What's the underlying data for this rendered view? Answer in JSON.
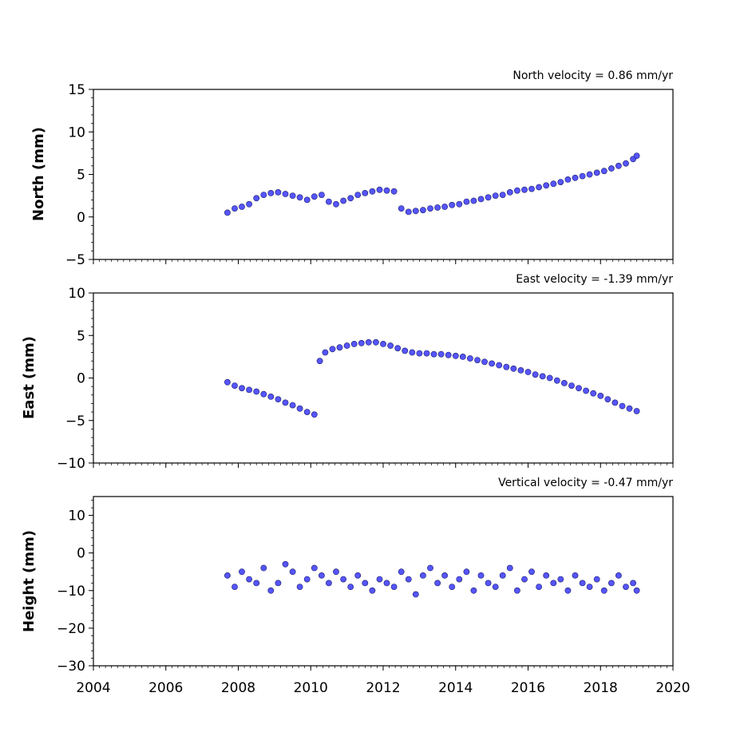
{
  "chart_data": [
    {
      "type": "scatter",
      "title": "North velocity = 0.86 mm/yr",
      "ylabel": "North (mm)",
      "xlim": [
        2004,
        2020
      ],
      "ylim": [
        -5,
        15
      ],
      "yticks": [
        -5,
        0,
        5,
        10,
        15
      ],
      "xticks": [
        2004,
        2006,
        2008,
        2010,
        2012,
        2014,
        2016,
        2018,
        2020
      ],
      "marker_color": "#5555ff",
      "series": [
        {
          "values_description_free": true,
          "x": [
            2007.7,
            2007.9,
            2008.1,
            2008.3,
            2008.5,
            2008.7,
            2008.9,
            2009.1,
            2009.3,
            2009.5,
            2009.7,
            2009.9,
            2010.1,
            2010.3,
            2010.5,
            2010.7,
            2010.9,
            2011.1,
            2011.3,
            2011.5,
            2011.7,
            2011.9,
            2012.1,
            2012.3,
            2012.5,
            2012.7,
            2012.9,
            2013.1,
            2013.3,
            2013.5,
            2013.7,
            2013.9,
            2014.1,
            2014.3,
            2014.5,
            2014.7,
            2014.9,
            2015.1,
            2015.3,
            2015.5,
            2015.7,
            2015.9,
            2016.1,
            2016.3,
            2016.5,
            2016.7,
            2016.9,
            2017.1,
            2017.3,
            2017.5,
            2017.7,
            2017.9,
            2018.1,
            2018.3,
            2018.5,
            2018.7,
            2018.9,
            2019.0
          ],
          "y": [
            0.5,
            1.0,
            1.2,
            1.5,
            2.2,
            2.6,
            2.8,
            2.9,
            2.7,
            2.5,
            2.3,
            2.0,
            2.4,
            2.6,
            1.8,
            1.5,
            1.9,
            2.2,
            2.6,
            2.8,
            3.0,
            3.2,
            3.1,
            3.0,
            1.0,
            0.6,
            0.7,
            0.8,
            1.0,
            1.1,
            1.2,
            1.4,
            1.5,
            1.8,
            1.9,
            2.1,
            2.3,
            2.5,
            2.6,
            2.9,
            3.1,
            3.2,
            3.3,
            3.5,
            3.7,
            3.9,
            4.1,
            4.4,
            4.6,
            4.8,
            5.0,
            5.2,
            5.4,
            5.7,
            6.0,
            6.3,
            6.8,
            7.2
          ]
        }
      ]
    },
    {
      "type": "scatter",
      "title": "East velocity = -1.39 mm/yr",
      "ylabel": "East (mm)",
      "xlim": [
        2004,
        2020
      ],
      "ylim": [
        -10,
        10
      ],
      "yticks": [
        -10,
        -5,
        0,
        5,
        10
      ],
      "xticks": [
        2004,
        2006,
        2008,
        2010,
        2012,
        2014,
        2016,
        2018,
        2020
      ],
      "marker_color": "#5555ff",
      "series": [
        {
          "x": [
            2007.7,
            2007.9,
            2008.1,
            2008.3,
            2008.5,
            2008.7,
            2008.9,
            2009.1,
            2009.3,
            2009.5,
            2009.7,
            2009.9,
            2010.1,
            2010.25,
            2010.4,
            2010.6,
            2010.8,
            2011.0,
            2011.2,
            2011.4,
            2011.6,
            2011.8,
            2012.0,
            2012.2,
            2012.4,
            2012.6,
            2012.8,
            2013.0,
            2013.2,
            2013.4,
            2013.6,
            2013.8,
            2014.0,
            2014.2,
            2014.4,
            2014.6,
            2014.8,
            2015.0,
            2015.2,
            2015.4,
            2015.6,
            2015.8,
            2016.0,
            2016.2,
            2016.4,
            2016.6,
            2016.8,
            2017.0,
            2017.2,
            2017.4,
            2017.6,
            2017.8,
            2018.0,
            2018.2,
            2018.4,
            2018.6,
            2018.8,
            2019.0
          ],
          "y": [
            -0.5,
            -0.9,
            -1.2,
            -1.4,
            -1.6,
            -1.9,
            -2.2,
            -2.5,
            -2.9,
            -3.2,
            -3.6,
            -4.0,
            -4.3,
            2.0,
            3.0,
            3.4,
            3.6,
            3.8,
            4.0,
            4.1,
            4.2,
            4.2,
            4.0,
            3.8,
            3.5,
            3.2,
            3.0,
            2.9,
            2.9,
            2.8,
            2.8,
            2.7,
            2.6,
            2.5,
            2.3,
            2.1,
            1.9,
            1.7,
            1.5,
            1.3,
            1.1,
            0.9,
            0.7,
            0.4,
            0.2,
            0.0,
            -0.3,
            -0.6,
            -0.9,
            -1.2,
            -1.5,
            -1.8,
            -2.1,
            -2.5,
            -2.9,
            -3.3,
            -3.6,
            -3.9
          ]
        }
      ]
    },
    {
      "type": "scatter",
      "title": "Vertical velocity = -0.47 mm/yr",
      "ylabel": "Height (mm)",
      "xlim": [
        2004,
        2020
      ],
      "ylim": [
        -30,
        15
      ],
      "yticks": [
        -30,
        -20,
        -10,
        0,
        10
      ],
      "xticks": [
        2004,
        2006,
        2008,
        2010,
        2012,
        2014,
        2016,
        2018,
        2020
      ],
      "marker_color": "#5555ff",
      "series": [
        {
          "x": [
            2007.7,
            2007.9,
            2008.1,
            2008.3,
            2008.5,
            2008.7,
            2008.9,
            2009.1,
            2009.3,
            2009.5,
            2009.7,
            2009.9,
            2010.1,
            2010.3,
            2010.5,
            2010.7,
            2010.9,
            2011.1,
            2011.3,
            2011.5,
            2011.7,
            2011.9,
            2012.1,
            2012.3,
            2012.5,
            2012.7,
            2012.9,
            2013.1,
            2013.3,
            2013.5,
            2013.7,
            2013.9,
            2014.1,
            2014.3,
            2014.5,
            2014.7,
            2014.9,
            2015.1,
            2015.3,
            2015.5,
            2015.7,
            2015.9,
            2016.1,
            2016.3,
            2016.5,
            2016.7,
            2016.9,
            2017.1,
            2017.3,
            2017.5,
            2017.7,
            2017.9,
            2018.1,
            2018.3,
            2018.5,
            2018.7,
            2018.9,
            2019.0
          ],
          "y": [
            -6,
            -9,
            -5,
            -7,
            -8,
            -4,
            -10,
            -8,
            -3,
            -5,
            -9,
            -7,
            -4,
            -6,
            -8,
            -5,
            -7,
            -9,
            -6,
            -8,
            -10,
            -7,
            -8,
            -9,
            -5,
            -7,
            -11,
            -6,
            -4,
            -8,
            -6,
            -9,
            -7,
            -5,
            -10,
            -6,
            -8,
            -9,
            -6,
            -4,
            -10,
            -7,
            -5,
            -9,
            -6,
            -8,
            -7,
            -10,
            -6,
            -8,
            -9,
            -7,
            -10,
            -8,
            -6,
            -9,
            -8,
            -10
          ]
        }
      ]
    }
  ]
}
